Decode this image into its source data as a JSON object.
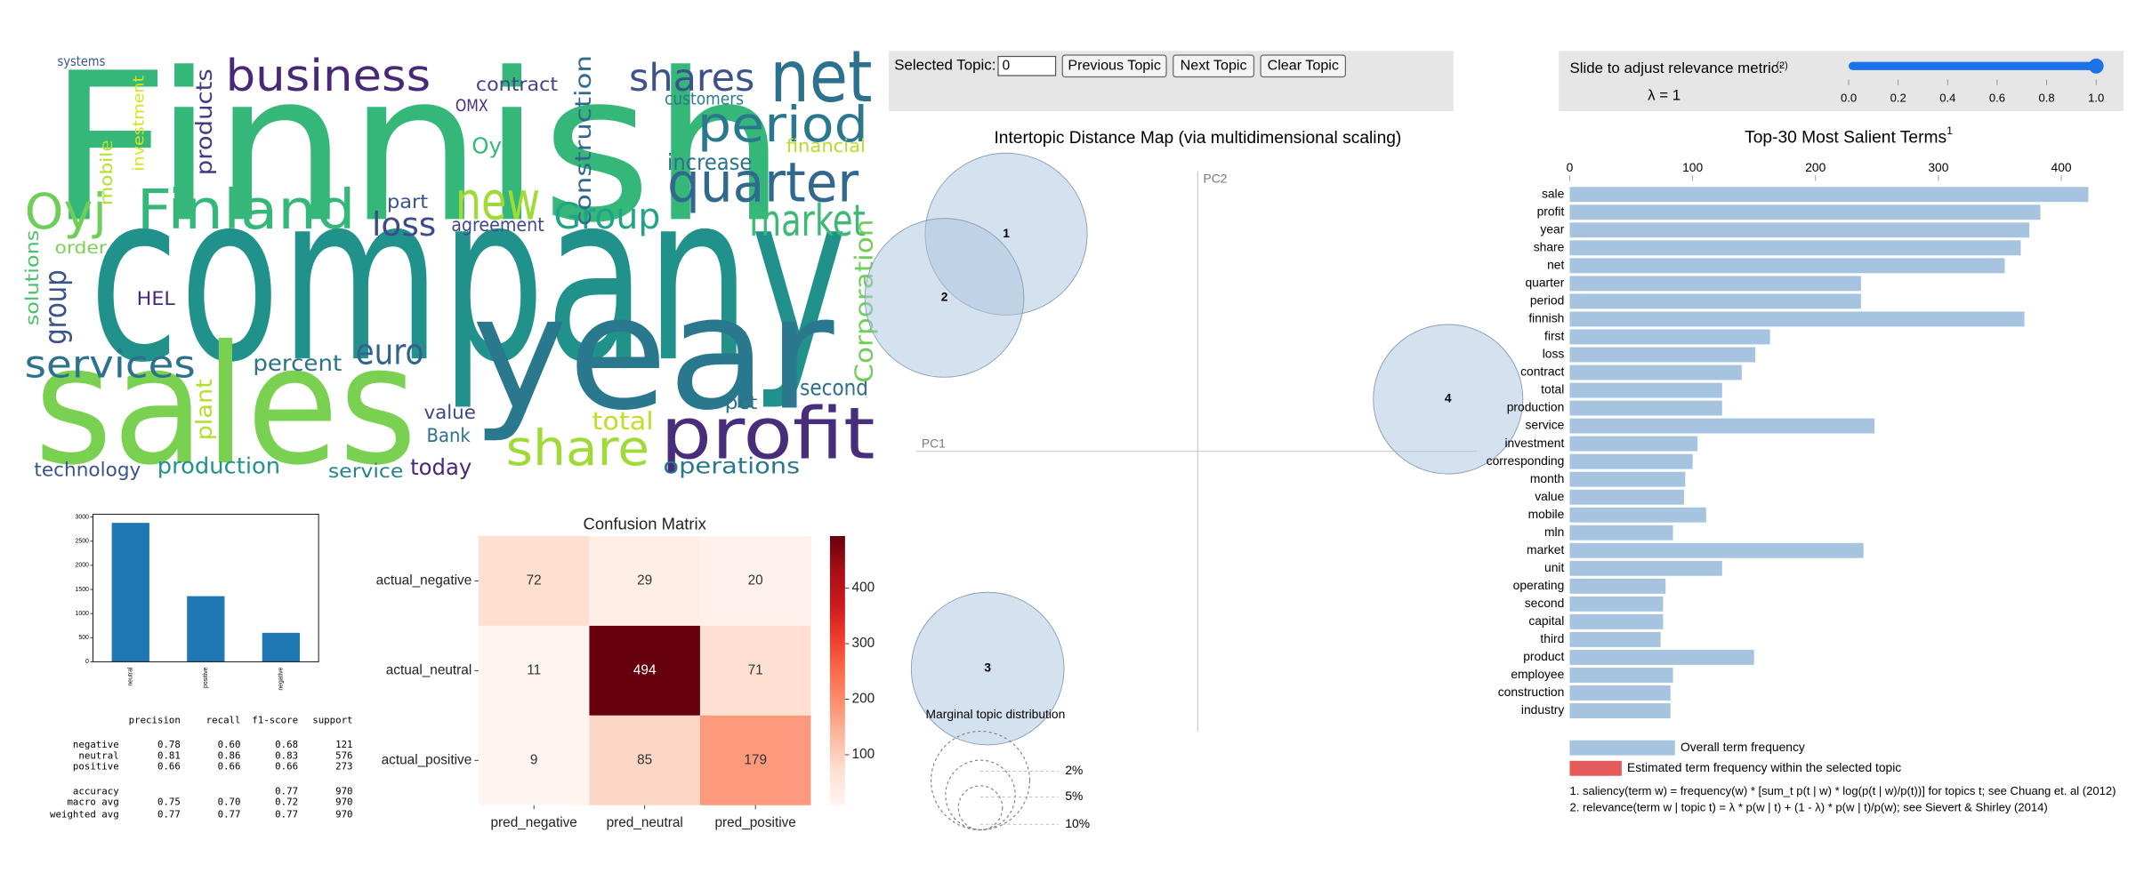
{
  "wordcloud": {
    "words": [
      {
        "text": "Finnish",
        "color": "#35b779"
      },
      {
        "text": "company",
        "color": "#21918c"
      },
      {
        "text": "sales",
        "color": "#7ad151"
      },
      {
        "text": "year",
        "color": "#2a788e"
      },
      {
        "text": "business",
        "color": "#482878"
      },
      {
        "text": "shares",
        "color": "#3b528b"
      },
      {
        "text": "net",
        "color": "#2c728e"
      },
      {
        "text": "period",
        "color": "#2a788e"
      },
      {
        "text": "quarter",
        "color": "#31688e"
      },
      {
        "text": "market",
        "color": "#3aba76"
      },
      {
        "text": "Oyj",
        "color": "#6ece58"
      },
      {
        "text": "Finland",
        "color": "#35b779"
      },
      {
        "text": "new",
        "color": "#a0da39"
      },
      {
        "text": "Group",
        "color": "#20a386"
      },
      {
        "text": "loss",
        "color": "#3e4a89"
      },
      {
        "text": "services",
        "color": "#2c728e"
      },
      {
        "text": "euro",
        "color": "#33638d"
      },
      {
        "text": "percent",
        "color": "#2d708e"
      },
      {
        "text": "share",
        "color": "#a0da39"
      },
      {
        "text": "profit",
        "color": "#472d7b"
      },
      {
        "text": "total",
        "color": "#bddf26"
      },
      {
        "text": "second",
        "color": "#2e6e8e"
      },
      {
        "text": "value",
        "color": "#404688"
      },
      {
        "text": "Bank",
        "color": "#2c728e"
      },
      {
        "text": "technology",
        "color": "#3b528b"
      },
      {
        "text": "production",
        "color": "#21918c"
      },
      {
        "text": "service",
        "color": "#26828e"
      },
      {
        "text": "today",
        "color": "#482878"
      },
      {
        "text": "operations",
        "color": "#2a788e"
      },
      {
        "text": "agreement",
        "color": "#3e4a89"
      },
      {
        "text": "contract",
        "color": "#404688"
      },
      {
        "text": "increase",
        "color": "#2c728e"
      },
      {
        "text": "customers",
        "color": "#2a788e"
      },
      {
        "text": "financial",
        "color": "#b5de2b"
      },
      {
        "text": "part",
        "color": "#3b528b"
      },
      {
        "text": "pct",
        "color": "#2d708e"
      },
      {
        "text": "HEL",
        "color": "#482878"
      },
      {
        "text": "order",
        "color": "#7ad151"
      },
      {
        "text": "OMX",
        "color": "#472d7b"
      },
      {
        "text": "Oy",
        "color": "#35b779"
      },
      {
        "text": "systems",
        "color": "#39568c"
      },
      {
        "text": "Corporation",
        "color": "#6ece58"
      },
      {
        "text": "construction",
        "color": "#31688e"
      },
      {
        "text": "group",
        "color": "#3b528b"
      },
      {
        "text": "products",
        "color": "#443a83"
      },
      {
        "text": "plant",
        "color": "#b5de2b"
      },
      {
        "text": "solutions",
        "color": "#4ac16d"
      },
      {
        "text": "mobile",
        "color": "#b5de2b"
      },
      {
        "text": "investment",
        "color": "#d8e219"
      }
    ]
  },
  "report": {
    "columns": [
      "precision",
      "recall",
      "f1-score",
      "support"
    ],
    "rows": [
      {
        "label": "negative",
        "cells": [
          "0.78",
          "0.60",
          "0.68",
          "121"
        ]
      },
      {
        "label": "neutral",
        "cells": [
          "0.81",
          "0.86",
          "0.83",
          "576"
        ]
      },
      {
        "label": "positive",
        "cells": [
          "0.66",
          "0.66",
          "0.66",
          "273"
        ]
      },
      {
        "label": "accuracy",
        "cells": [
          null,
          null,
          "0.77",
          "970"
        ]
      },
      {
        "label": "macro avg",
        "cells": [
          "0.75",
          "0.70",
          "0.72",
          "970"
        ]
      },
      {
        "label": "weighted avg",
        "cells": [
          "0.77",
          "0.77",
          "0.77",
          "970"
        ]
      }
    ]
  },
  "controls": {
    "topic_label": "Selected Topic:",
    "topic_value": "0",
    "buttons": [
      "Previous Topic",
      "Next Topic",
      "Clear Topic"
    ],
    "slider_label": "Slide to adjust relevance metric:",
    "slider_note": "(2)",
    "lambda_label": "λ = 1",
    "slider_ticks": [
      {
        "value": 0,
        "label": "0.0"
      },
      0.2,
      0.4,
      0.6,
      0.8,
      {
        "value": 1,
        "label": "1.0"
      }
    ],
    "slider_value": 1
  },
  "chart_data": [
    {
      "type": "bar",
      "categories": [
        "neutral",
        "positive",
        "negative"
      ],
      "values": [
        2880,
        1360,
        600
      ],
      "color": "#1f77b4",
      "ylim": [
        0,
        3060
      ],
      "yticks": [
        0,
        500,
        1000,
        1500,
        2000,
        2500,
        3000
      ]
    },
    {
      "type": "heatmap",
      "title": "Confusion Matrix",
      "rows": [
        "actual_negative",
        "actual_neutral",
        "actual_positive"
      ],
      "columns": [
        "pred_negative",
        "pred_neutral",
        "pred_positive"
      ],
      "values": [
        [
          72,
          29,
          20
        ],
        [
          11,
          494,
          71
        ],
        [
          9,
          85,
          179
        ]
      ],
      "colormap": "Reds",
      "clim": [
        9,
        494
      ],
      "cticks": [
        100,
        200,
        300,
        400
      ]
    },
    {
      "type": "scatter",
      "title": "Intertopic Distance Map (via multidimensional scaling)",
      "xlabel": "PC1",
      "ylabel": "PC2",
      "xlim": [
        -1,
        1
      ],
      "ylim": [
        -1,
        1
      ],
      "color": "#aac4de",
      "points": {
        "labels": [
          "1",
          "2",
          "3",
          "4"
        ],
        "x": [
          -0.62,
          -0.82,
          -0.68,
          0.81
        ],
        "y": [
          0.75,
          0.53,
          -0.75,
          0.18
        ],
        "sizes": [
          27,
          26,
          24,
          23
        ]
      },
      "size_legend": {
        "title": "Marginal topic distribution",
        "sizes": [
          {
            "value": 2,
            "label": "2%"
          },
          {
            "value": 5,
            "label": "5%"
          },
          {
            "value": 10,
            "label": "10%"
          }
        ]
      }
    },
    {
      "type": "barh",
      "title": "Top-30 Most Salient Terms",
      "title_note": "1",
      "categories": [
        "sale",
        "profit",
        "year",
        "share",
        "net",
        "quarter",
        "period",
        "finnish",
        "first",
        "loss",
        "contract",
        "total",
        "production",
        "service",
        "investment",
        "corresponding",
        "month",
        "value",
        "mobile",
        "mln",
        "market",
        "unit",
        "operating",
        "second",
        "capital",
        "third",
        "product",
        "employee",
        "construction",
        "industry"
      ],
      "series": [
        {
          "name": "Overall term frequency",
          "color": "#a6c4e0",
          "values": [
            422,
            383,
            374,
            367,
            354,
            237,
            237,
            370,
            163,
            151,
            140,
            124,
            124,
            248,
            104,
            100,
            94,
            93,
            111,
            84,
            239,
            124,
            78,
            76,
            76,
            74,
            150,
            84,
            82,
            82
          ]
        }
      ],
      "legend_extra": [
        {
          "name": "Estimated term frequency within the selected topic",
          "color": "#e35a5a"
        }
      ],
      "xlim": [
        0,
        425
      ],
      "xticks": [
        0,
        100,
        200,
        300,
        400
      ],
      "footnotes": [
        "1. saliency(term w) = frequency(w) * [sum_t p(t | w) * log(p(t | w)/p(t))] for topics t; see Chuang et. al (2012)",
        "2. relevance(term w | topic t) = λ * p(w | t) + (1 - λ) * p(w | t)/p(w); see Sievert & Shirley (2014)"
      ]
    }
  ]
}
